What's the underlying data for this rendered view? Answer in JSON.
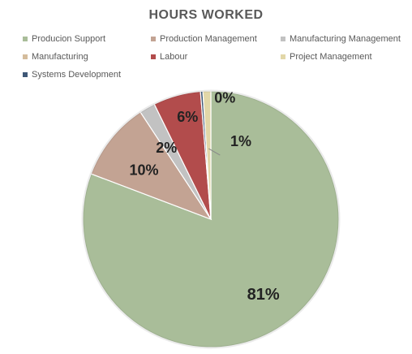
{
  "chart_data": {
    "type": "pie",
    "title": "HOURS WORKED",
    "legend_position": "top",
    "series": [
      {
        "name": "Producion Support",
        "value": 81,
        "label": "81%",
        "color": "#a9bd99"
      },
      {
        "name": "Production Management",
        "value": 10,
        "label": "10%",
        "color": "#c3a393"
      },
      {
        "name": "Manufacturing Management",
        "value": 2,
        "label": "2%",
        "color": "#c2c2c2"
      },
      {
        "name": "Manufacturing",
        "value": 0,
        "label": "",
        "color": "#d4bc9c"
      },
      {
        "name": "Labour",
        "value": 6,
        "label": "6%",
        "color": "#b24c4c"
      },
      {
        "name": "Project Management",
        "value": 1,
        "label": "1%",
        "color": "#e2d7a8"
      },
      {
        "name": "Systems Development",
        "value": 0.3,
        "label": "0%",
        "color": "#3f5877"
      }
    ]
  }
}
